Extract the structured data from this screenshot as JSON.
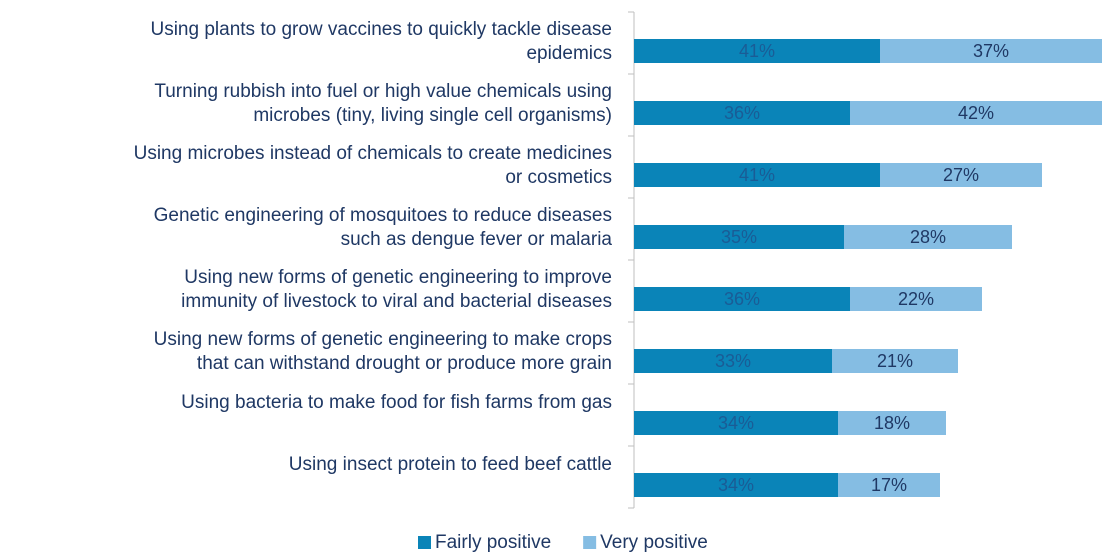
{
  "chart_data": {
    "type": "bar",
    "orientation": "horizontal",
    "stacked": true,
    "categories": [
      [
        "Using plants to grow vaccines to quickly tackle disease",
        "epidemics"
      ],
      [
        "Turning rubbish into fuel or high value chemicals using",
        "microbes (tiny, living single cell organisms)"
      ],
      [
        "Using microbes instead of chemicals to create medicines",
        "or cosmetics"
      ],
      [
        "Genetic engineering of mosquitoes to reduce diseases",
        "such as dengue fever or malaria"
      ],
      [
        "Using new forms of genetic engineering to improve",
        "immunity of livestock to viral and bacterial diseases"
      ],
      [
        "Using new forms of genetic engineering to make crops",
        "that can withstand drought or produce more grain"
      ],
      [
        "Using bacteria to make food for fish farms from gas"
      ],
      [
        "Using insect protein to feed beef cattle"
      ]
    ],
    "series": [
      {
        "name": "Fairly positive",
        "color": "#0a84b8",
        "label_color": "#1a5c96",
        "values": [
          41,
          36,
          41,
          35,
          36,
          33,
          34,
          34
        ],
        "value_labels": [
          "41%",
          "36%",
          "41%",
          "35%",
          "36%",
          "33%",
          "34%",
          "34%"
        ]
      },
      {
        "name": "Very positive",
        "color": "#85bde3",
        "label_color": "#1f3864",
        "values": [
          37,
          42,
          27,
          28,
          22,
          21,
          18,
          17
        ],
        "value_labels": [
          "37%",
          "42%",
          "27%",
          "28%",
          "22%",
          "21%",
          "18%",
          "17%"
        ]
      }
    ],
    "xlim": [
      0,
      80
    ],
    "legend": "bottom"
  }
}
